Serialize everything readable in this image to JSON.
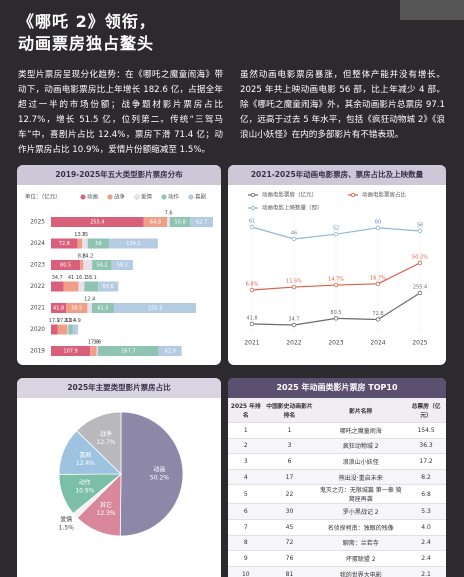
{
  "header": {
    "title_line1": "《哪吒 2》领衔，",
    "title_line2": "动画票房独占鳌头"
  },
  "paragraphs": [
    "类型片票房呈现分化趋势：在《哪吒之魔童闹海》带动下，动画电影票房比上年增长 182.6 亿，占据全年超过一半的市场份额；战争题材影片票房占比 12.7%，增长 51.5 亿，位列第二。传统“三驾马车”中，喜剧片占比 12.4%，票房下滑 71.4 亿；动作片票房占比 10.9%，爱情片份额缩减至 1.5%。",
    "虽然动画电影票房暴涨，但整体产能并没有增长。2025 年共上映动画电影 56 部，比上年减少 4 部。除《哪吒之魔童闹海》外，其余动画影片总票房 97.1 亿，远高于过去 5 年水平，包括《疯狂动物城 2》《浪浪山小妖怪》在内的多部影片有不错表现。"
  ],
  "chart_data": [
    {
      "type": "stacked-bar",
      "title": "2019-2025年五大类型影片票房分布",
      "unit": "单位：（亿元）",
      "categories": [
        "2025",
        "2024",
        "2023",
        "2022",
        "2021",
        "2020",
        "2019"
      ],
      "series": [
        {
          "name": "动画",
          "color": "#d9607a",
          "values": [
            255.4,
            72.8,
            80.5,
            34.7,
            41.8,
            17.9,
            107.9
          ]
        },
        {
          "name": "战争",
          "color": "#ef9f87",
          "values": [
            64.8,
            13.3,
            8.6,
            41.0,
            58.5,
            27.3,
            17.8
          ]
        },
        {
          "name": "爱情",
          "color": "#e6e1ea",
          "values": [
            7.6,
            15.0,
            24.2,
            16.1,
            12.4,
            2.7,
            3.6
          ]
        },
        {
          "name": "动作",
          "color": "#8fc3b2",
          "values": [
            55.8,
            59.0,
            54.2,
            38.1,
            61.5,
            11.4,
            167.7
          ]
        },
        {
          "name": "喜剧",
          "color": "#b5cbe2",
          "values": [
            62.7,
            134.1,
            58.2,
            55.6,
            225.3,
            14.9,
            62.9
          ]
        }
      ]
    },
    {
      "type": "line",
      "title": "2021-2025年动画电影票房、票房占比及上映数量",
      "categories": [
        "2021",
        "2022",
        "2023",
        "2024",
        "2025"
      ],
      "series": [
        {
          "name": "动画电影票房（亿元）",
          "color": "#6b6b6b",
          "values": [
            41.8,
            34.7,
            80.5,
            72.8,
            255.4
          ]
        },
        {
          "name": "动画电影票房占比",
          "color": "#d9604a",
          "values": [
            6.8,
            11.5,
            14.7,
            16.7,
            50.2
          ],
          "value_labels": [
            "6.8%",
            "11.5%",
            "14.7%",
            "16.7%",
            "50.2%"
          ]
        },
        {
          "name": "动画电影上映数量（部）",
          "color": "#8fb8d8",
          "values": [
            61,
            46,
            52,
            60,
            56
          ]
        }
      ]
    },
    {
      "type": "pie",
      "title": "2025年主要类型影片票房占比",
      "categories": [
        "动画",
        "其它",
        "爱情",
        "动作",
        "喜剧",
        "战争"
      ],
      "values": [
        50.2,
        12.3,
        1.5,
        10.9,
        12.4,
        12.7
      ],
      "value_labels": [
        "50.2%",
        "12.3%",
        "1.5%",
        "10.9%",
        "12.4%",
        "12.7%"
      ],
      "colors": [
        "#8e88a8",
        "#d9879a",
        "#f2eff5",
        "#7bbfa8",
        "#9ec3e0",
        "#b9b9bd"
      ]
    }
  ],
  "table": {
    "title": "2025 年动画类影片票房 TOP10",
    "columns": [
      "2025 年排名",
      "中国影史动画影片排名",
      "影片名称",
      "总票房（亿元）"
    ],
    "rows": [
      [
        "1",
        "1",
        "哪吒之魔童闹海",
        "154.5"
      ],
      [
        "2",
        "3",
        "疯狂动物城 2",
        "36.3"
      ],
      [
        "3",
        "6",
        "浪浪山小妖怪",
        "17.2"
      ],
      [
        "4",
        "17",
        "熊出没·重启未来",
        "8.2"
      ],
      [
        "5",
        "22",
        "鬼灭之刃：无限城篇 第一章 猗窝座再袭",
        "6.8"
      ],
      [
        "6",
        "30",
        "罗小黑战记 2",
        "5.3"
      ],
      [
        "7",
        "45",
        "名侦探柯南：独眼的残像",
        "4.0"
      ],
      [
        "8",
        "72",
        "聊斋：兰若寺",
        "2.4"
      ],
      [
        "9",
        "76",
        "坏蛋联盟 2",
        "2.4"
      ],
      [
        "10",
        "81",
        "我的世界大电影",
        "2.1"
      ]
    ]
  }
}
